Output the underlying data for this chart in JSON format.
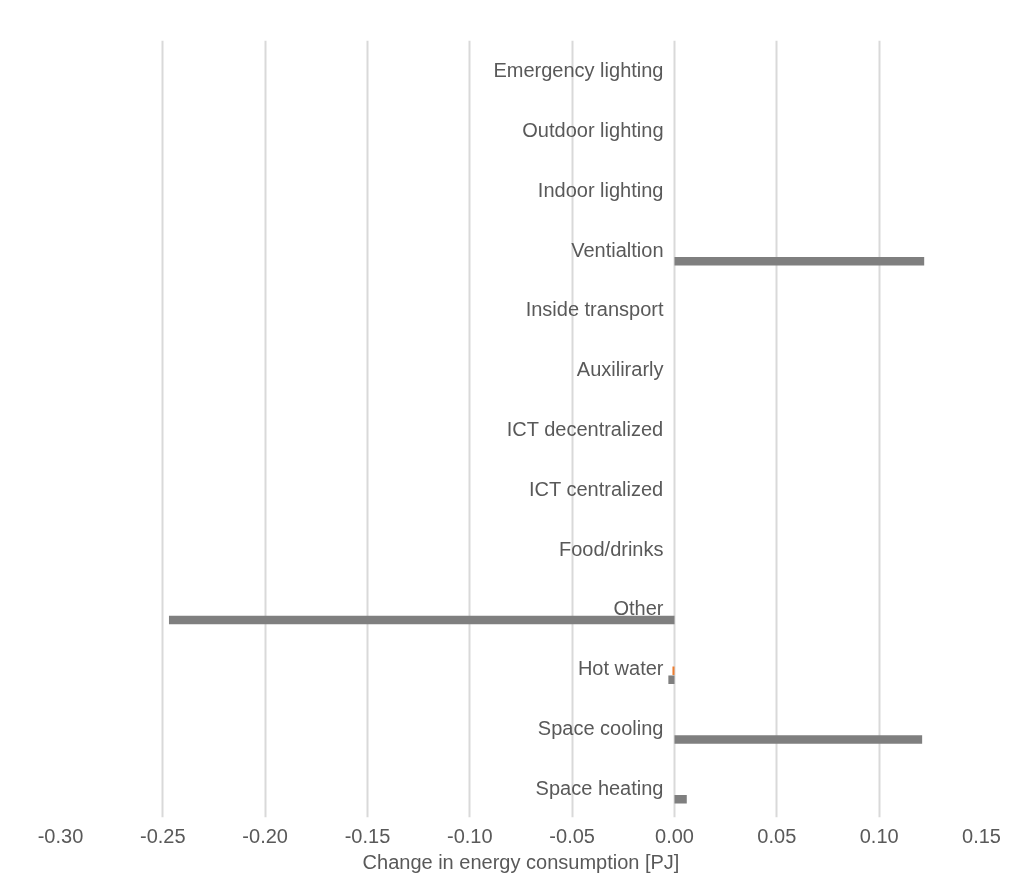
{
  "chart_data": {
    "type": "bar",
    "orientation": "horizontal",
    "xlabel": "Change in energy consumption [PJ]",
    "categories": [
      "Emergency lighting",
      "Outdoor lighting",
      "Indoor lighting",
      "Ventialtion",
      "Inside transport",
      "Auxilirarly",
      "ICT decentralized",
      "ICT centralized",
      "Food/drinks",
      "Other",
      "Hot water",
      "Space cooling",
      "Space heating"
    ],
    "series": [
      {
        "color": "#ed7d31",
        "values": [
          null,
          null,
          null,
          null,
          null,
          null,
          null,
          null,
          null,
          null,
          -0.001,
          null,
          null
        ]
      },
      {
        "color": "#7f7f7f",
        "values": [
          null,
          null,
          null,
          0.122,
          null,
          null,
          null,
          null,
          null,
          -0.247,
          -0.003,
          0.121,
          0.006
        ]
      }
    ],
    "xlim": [
      -0.3,
      0.15
    ],
    "xticks": [
      {
        "value": -0.3,
        "label": "-0.30"
      },
      {
        "value": -0.25,
        "label": "-0.25"
      },
      {
        "value": -0.2,
        "label": "-0.20"
      },
      {
        "value": -0.15,
        "label": "-0.15"
      },
      {
        "value": -0.1,
        "label": "-0.10"
      },
      {
        "value": -0.05,
        "label": "-0.05"
      },
      {
        "value": 0,
        "label": "0.00"
      },
      {
        "value": 0.05,
        "label": "0.05"
      },
      {
        "value": 0.1,
        "label": "0.10"
      },
      {
        "value": 0.15,
        "label": "0.15"
      }
    ],
    "grid": "x"
  }
}
